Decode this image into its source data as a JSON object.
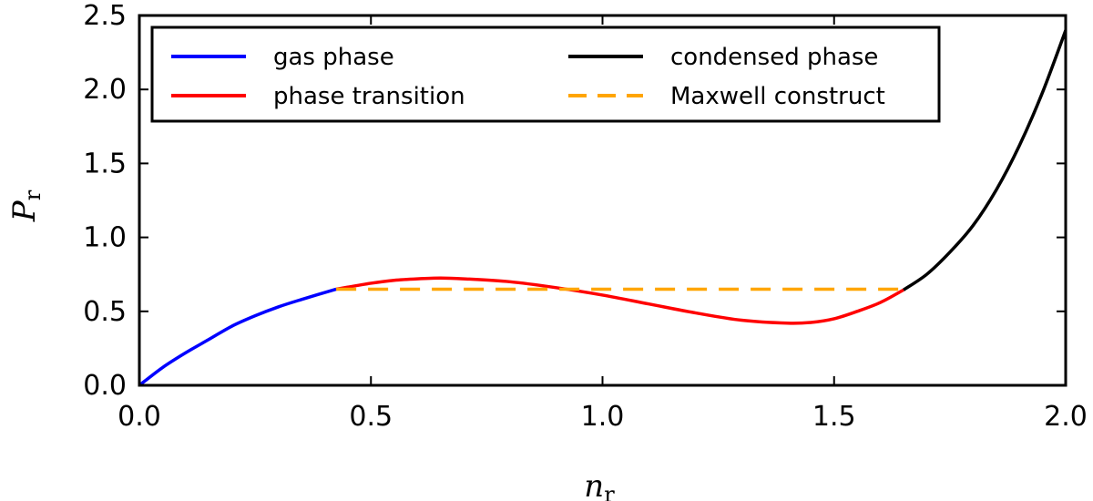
{
  "chart_data": {
    "type": "line",
    "title": "",
    "xlabel": "n",
    "xlabel_subscript": "r",
    "ylabel": "P",
    "ylabel_subscript": "r",
    "xlim": [
      0.0,
      2.0
    ],
    "ylim": [
      0.0,
      2.5
    ],
    "xticks": [
      0.0,
      0.5,
      1.0,
      1.5,
      2.0
    ],
    "yticks": [
      0.0,
      0.5,
      1.0,
      1.5,
      2.0,
      2.5
    ],
    "xtick_labels": [
      "0.0",
      "0.5",
      "1.0",
      "1.5",
      "2.0"
    ],
    "ytick_labels": [
      "0.0",
      "0.5",
      "1.0",
      "1.5",
      "2.0",
      "2.5"
    ],
    "grid": false,
    "legend_position": "top",
    "series": [
      {
        "name": "gas phase",
        "color": "#0000ff",
        "style": "solid",
        "x": [
          0.0,
          0.05,
          0.1,
          0.15,
          0.2,
          0.25,
          0.3,
          0.35,
          0.425
        ],
        "y": [
          0.0,
          0.12,
          0.22,
          0.31,
          0.4,
          0.47,
          0.53,
          0.58,
          0.65
        ]
      },
      {
        "name": "phase transition",
        "color": "#ff0000",
        "style": "solid",
        "x": [
          0.425,
          0.5,
          0.55,
          0.6,
          0.65,
          0.7,
          0.8,
          0.9,
          1.0,
          1.1,
          1.2,
          1.3,
          1.4,
          1.45,
          1.5,
          1.55,
          1.6,
          1.65
        ],
        "y": [
          0.65,
          0.69,
          0.71,
          0.72,
          0.725,
          0.72,
          0.7,
          0.66,
          0.61,
          0.55,
          0.49,
          0.44,
          0.42,
          0.425,
          0.45,
          0.5,
          0.56,
          0.645
        ]
      },
      {
        "name": "condensed phase",
        "color": "#000000",
        "style": "solid",
        "x": [
          1.65,
          1.7,
          1.75,
          1.8,
          1.85,
          1.9,
          1.95,
          2.0
        ],
        "y": [
          0.645,
          0.75,
          0.9,
          1.08,
          1.32,
          1.62,
          1.98,
          2.4
        ]
      },
      {
        "name": "Maxwell construct",
        "color": "#ffa500",
        "style": "dashed",
        "x": [
          0.425,
          1.65
        ],
        "y": [
          0.65,
          0.65
        ]
      }
    ]
  }
}
